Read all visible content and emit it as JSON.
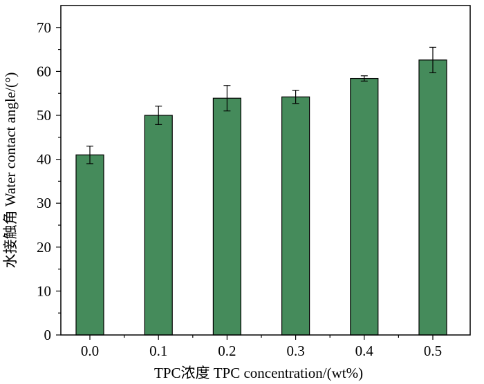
{
  "chart_data": {
    "type": "bar",
    "title": "",
    "xlabel": "TPC浓度 TPC concentration/(wt%)",
    "ylabel": "水接触角 Water contact angle/(°)",
    "categories": [
      "0.0",
      "0.1",
      "0.2",
      "0.3",
      "0.4",
      "0.5"
    ],
    "values": [
      41.0,
      50.0,
      53.9,
      54.2,
      58.4,
      62.6
    ],
    "errors": [
      2.0,
      2.1,
      2.9,
      1.5,
      0.6,
      2.9
    ],
    "ylim": [
      0,
      75
    ],
    "yticks": [
      0,
      10,
      20,
      30,
      40,
      50,
      60,
      70
    ],
    "grid": false,
    "legend": "none",
    "colors": {
      "bar_fill": "#458b5b",
      "bar_stroke": "#000000",
      "axis": "#000000"
    }
  }
}
